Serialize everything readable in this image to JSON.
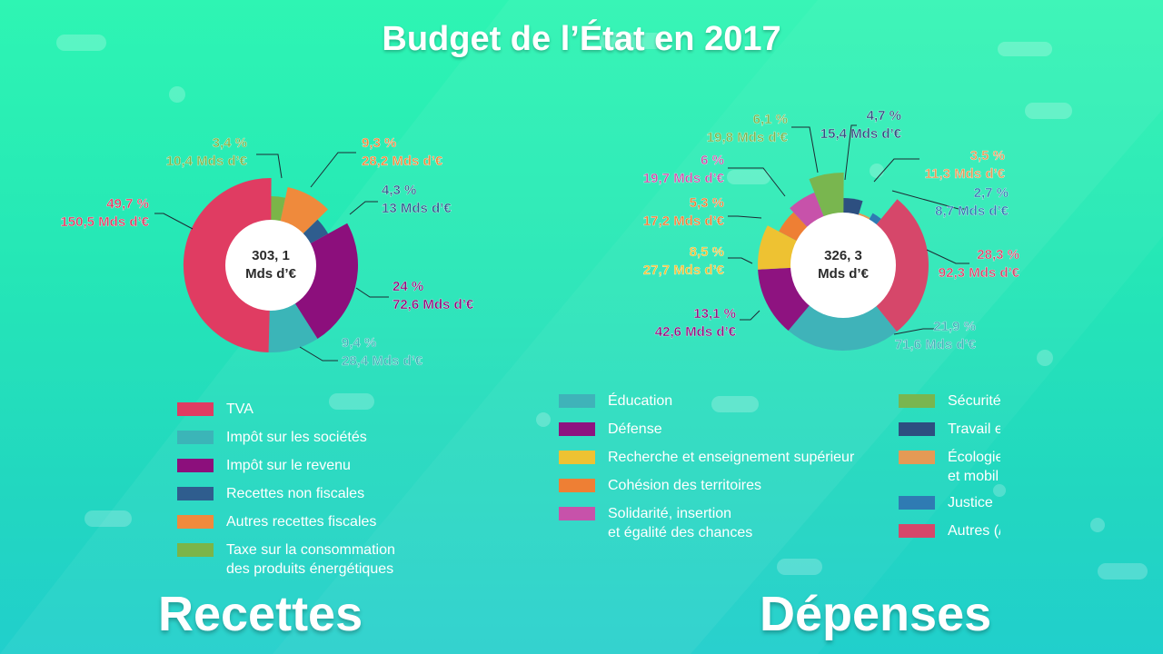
{
  "title": "Budget de l’État en 2017",
  "colors": {
    "tva": "#e03c62",
    "is": "#3bb5b8",
    "ir": "#8c0f7c",
    "rnf": "#2f5d8e",
    "arf": "#ef8a3c",
    "ticpe": "#7bb548",
    "education": "#3fb3b9",
    "defense": "#8e1380",
    "recherche": "#eec232",
    "cohesion": "#ee7f34",
    "solidarite": "#c752aa",
    "securite": "#79b64f",
    "travail": "#2d4f80",
    "ecologie": "#e49a55",
    "justice": "#2f7bb3",
    "autres": "#d6476a"
  },
  "chart_data": [
    {
      "type": "pie",
      "title": "Recettes",
      "total": "303, 1\nMds d’€",
      "total_lines": [
        "303, 1",
        "Mds d’€"
      ],
      "slices": [
        {
          "key": "ticpe",
          "legend": "Taxe sur la consommation des produits énergétiques",
          "percent": 3.4,
          "pct_label": "3,4 %",
          "amount": 10.4,
          "amount_label": "10,4 Mds d’€"
        },
        {
          "key": "arf",
          "legend": "Autres recettes fiscales",
          "percent": 9.3,
          "pct_label": "9,3 %",
          "amount": 28.2,
          "amount_label": "28,2 Mds d’€"
        },
        {
          "key": "rnf",
          "legend": "Recettes non fiscales",
          "percent": 4.3,
          "pct_label": "4,3 %",
          "amount": 13,
          "amount_label": "13 Mds d’€"
        },
        {
          "key": "ir",
          "legend": "Impôt sur le revenu",
          "percent": 24,
          "pct_label": "24 %",
          "amount": 72.6,
          "amount_label": "72,6 Mds d’€"
        },
        {
          "key": "is",
          "legend": "Impôt sur les sociétés",
          "percent": 9.4,
          "pct_label": "9,4 %",
          "amount": 28.4,
          "amount_label": "28,4 Mds d’€"
        },
        {
          "key": "tva",
          "legend": "TVA",
          "percent": 49.7,
          "pct_label": "49,7 %",
          "amount": 150.5,
          "amount_label": "150,5 Mds d’€"
        }
      ]
    },
    {
      "type": "pie",
      "title": "Dépenses",
      "total_lines": [
        "326, 3",
        "Mds d’€"
      ],
      "slices": [
        {
          "key": "travail",
          "percent": 4.7,
          "pct_label": "4,7 %",
          "amount": 15.4,
          "amount_label": "15,4 Mds d’€"
        },
        {
          "key": "ecologie",
          "percent": 3.5,
          "pct_label": "3,5 %",
          "amount": 11.3,
          "amount_label": "11,3 Mds d’€"
        },
        {
          "key": "justice",
          "percent": 2.7,
          "pct_label": "2,7 %",
          "amount": 8.7,
          "amount_label": "8,7 Mds d’€"
        },
        {
          "key": "autres",
          "percent": 28.3,
          "pct_label": "28,3 %",
          "amount": 92.3,
          "amount_label": "92,3 Mds d’€"
        },
        {
          "key": "education",
          "percent": 21.9,
          "pct_label": "21,9 %",
          "amount": 71.6,
          "amount_label": "71,6 Mds d’€"
        },
        {
          "key": "defense",
          "percent": 13.1,
          "pct_label": "13,1 %",
          "amount": 42.6,
          "amount_label": "42,6 Mds d’€"
        },
        {
          "key": "recherche",
          "percent": 8.5,
          "pct_label": "8,5 %",
          "amount": 27.7,
          "amount_label": "27,7 Mds d’€"
        },
        {
          "key": "cohesion",
          "percent": 5.3,
          "pct_label": "5,3 %",
          "amount": 17.2,
          "amount_label": "17,2 Mds d’€"
        },
        {
          "key": "solidarite",
          "percent": 6,
          "pct_label": "6 %",
          "amount": 19.7,
          "amount_label": "19,7 Mds d’€"
        },
        {
          "key": "securite",
          "percent": 6.1,
          "pct_label": "6,1 %",
          "amount": 19.8,
          "amount_label": "19,8 Mds d’€"
        }
      ]
    }
  ],
  "legend_recettes": [
    {
      "key": "tva",
      "label": "TVA"
    },
    {
      "key": "is",
      "label": "Impôt sur les sociétés"
    },
    {
      "key": "ir",
      "label": "Impôt sur le revenu"
    },
    {
      "key": "rnf",
      "label": "Recettes non fiscales"
    },
    {
      "key": "arf",
      "label": "Autres recettes fiscales"
    },
    {
      "key": "ticpe",
      "label": "Taxe sur la consommation",
      "label2": "des produits énergétiques"
    }
  ],
  "legend_depenses_a": [
    {
      "key": "education",
      "label": "Éducation"
    },
    {
      "key": "defense",
      "label": "Défense"
    },
    {
      "key": "recherche",
      "label": "Recherche et enseignement supérieur"
    },
    {
      "key": "cohesion",
      "label": "Cohésion des territoires"
    },
    {
      "key": "solidarite",
      "label": "Solidarité, insertion",
      "label2": "et égalité des chances"
    }
  ],
  "legend_depenses_b": [
    {
      "key": "securite",
      "label": "Sécurité"
    },
    {
      "key": "travail",
      "label": "Travail e"
    },
    {
      "key": "ecologie",
      "label": "Écologie",
      "label2": "et mobil"
    },
    {
      "key": "justice",
      "label": "Justice"
    },
    {
      "key": "autres",
      "label": "Autres (/"
    }
  ],
  "section_titles": {
    "recettes": "Recettes",
    "depenses": "Dépenses"
  }
}
